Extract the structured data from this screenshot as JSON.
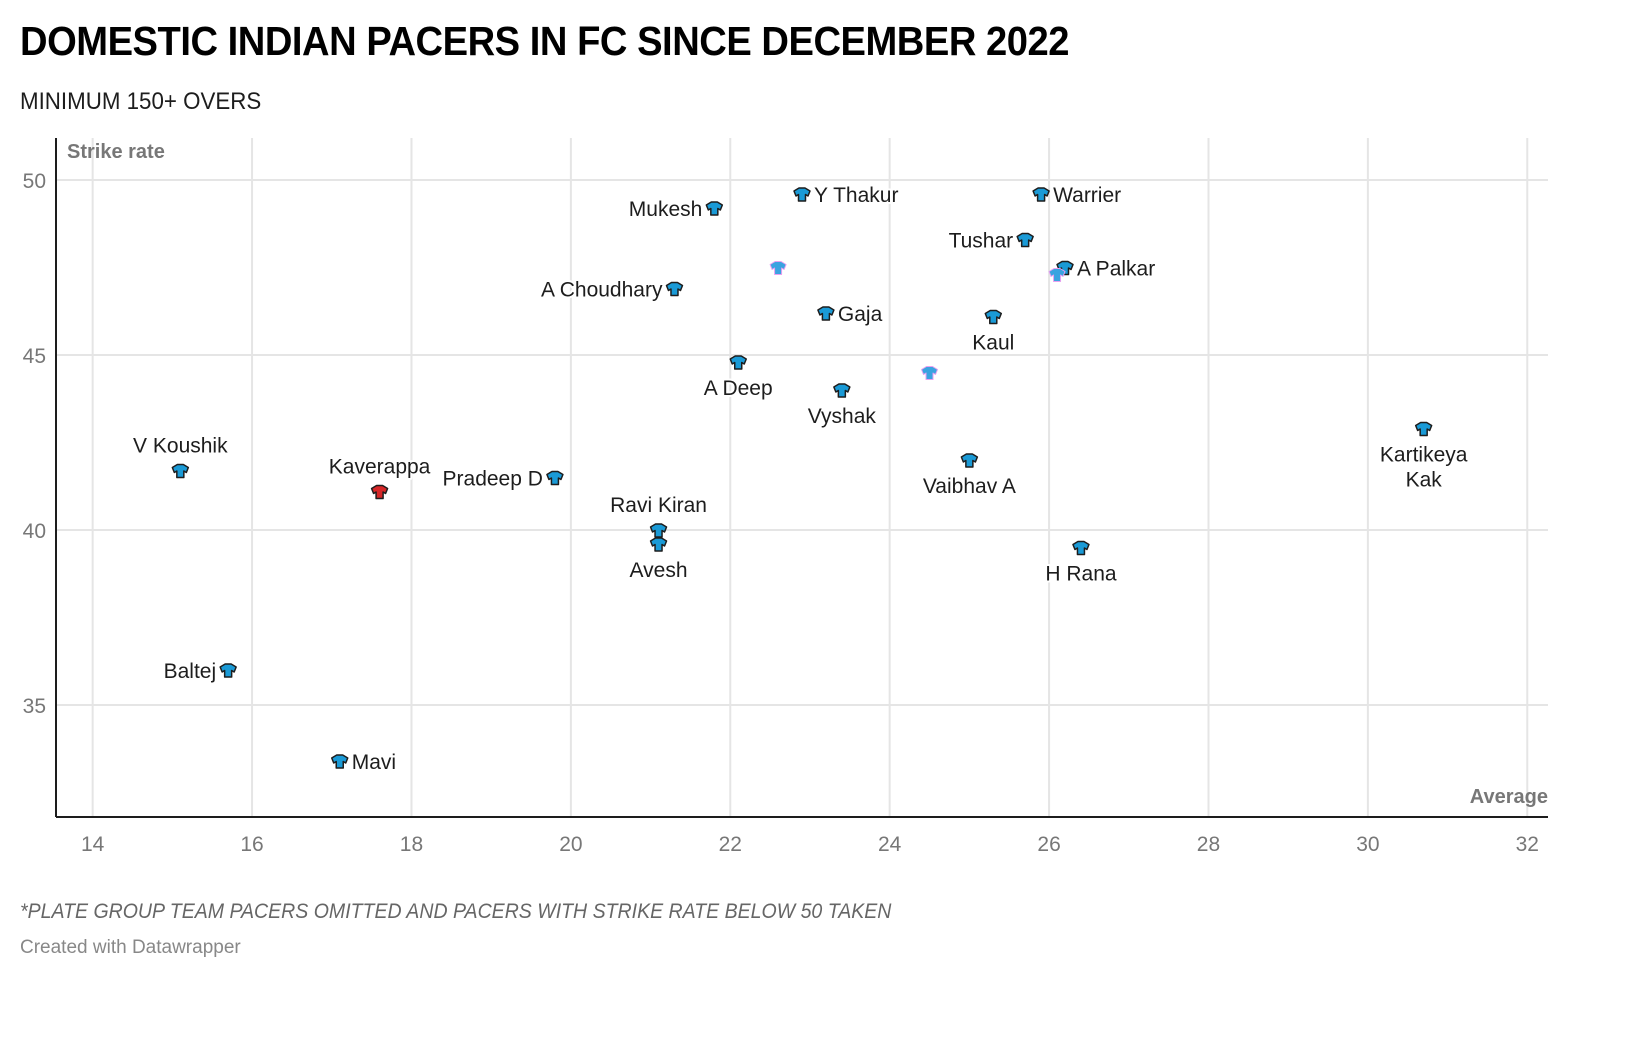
{
  "header": {
    "title": "DOMESTIC INDIAN PACERS IN FC SINCE DECEMBER 2022",
    "subtitle": "MINIMUM 150+ OVERS"
  },
  "footer": {
    "notes": "*PLATE GROUP TEAM PACERS OMITTED AND PACERS WITH STRIKE RATE BELOW 50 TAKEN",
    "byline": "Created with Datawrapper"
  },
  "colors": {
    "marker_default": "#1a9ad6",
    "marker_highlight": "#d62728",
    "marker_unlabeled": "#3aa3e0",
    "marker_outline": "#1d1d1d",
    "grid": "#e5e5e5",
    "axis": "#1d1d1d"
  },
  "chart_data": {
    "type": "scatter",
    "title": "DOMESTIC INDIAN PACERS IN FC SINCE DECEMBER 2022",
    "subtitle": "MINIMUM 150+ OVERS",
    "xlabel": "Average",
    "ylabel": "Strike rate",
    "xlim": [
      13.54,
      32.26
    ],
    "ylim": [
      31.8,
      51.2
    ],
    "xticks": [
      14,
      16,
      18,
      20,
      22,
      24,
      26,
      28,
      30,
      32
    ],
    "yticks": [
      35,
      40,
      45,
      50
    ],
    "grid": true,
    "marker": "t-shirt-icon",
    "points": [
      {
        "label": "Mukesh",
        "x": 21.8,
        "y": 49.2,
        "label_pos": "left",
        "color": "default"
      },
      {
        "label": "Y Thakur",
        "x": 22.9,
        "y": 49.6,
        "label_pos": "right",
        "color": "default"
      },
      {
        "label": "Warrier",
        "x": 25.9,
        "y": 49.6,
        "label_pos": "right",
        "color": "default"
      },
      {
        "label": "Tushar",
        "x": 25.7,
        "y": 48.3,
        "label_pos": "left",
        "color": "default"
      },
      {
        "label": "A Palkar",
        "x": 26.2,
        "y": 47.5,
        "label_pos": "right",
        "color": "default"
      },
      {
        "label": "",
        "x": 22.6,
        "y": 47.5,
        "label_pos": "none",
        "color": "unlabeled"
      },
      {
        "label": "",
        "x": 26.1,
        "y": 47.3,
        "label_pos": "none",
        "color": "unlabeled"
      },
      {
        "label": "A Choudhary",
        "x": 21.3,
        "y": 46.9,
        "label_pos": "left",
        "color": "default"
      },
      {
        "label": "Gaja",
        "x": 23.2,
        "y": 46.2,
        "label_pos": "right",
        "color": "default"
      },
      {
        "label": "Kaul",
        "x": 25.3,
        "y": 46.1,
        "label_pos": "below",
        "color": "default"
      },
      {
        "label": "A Deep",
        "x": 22.1,
        "y": 44.8,
        "label_pos": "below",
        "color": "default"
      },
      {
        "label": "",
        "x": 24.5,
        "y": 44.5,
        "label_pos": "none",
        "color": "unlabeled"
      },
      {
        "label": "Vyshak",
        "x": 23.4,
        "y": 44.0,
        "label_pos": "below",
        "color": "default"
      },
      {
        "label": "Kartikeya Kak",
        "x": 30.7,
        "y": 42.9,
        "label_pos": "below2",
        "color": "default"
      },
      {
        "label": "Vaibhav A",
        "x": 25.0,
        "y": 42.0,
        "label_pos": "below",
        "color": "default"
      },
      {
        "label": "V Koushik",
        "x": 15.1,
        "y": 41.7,
        "label_pos": "above",
        "color": "default"
      },
      {
        "label": "Pradeep D",
        "x": 19.8,
        "y": 41.5,
        "label_pos": "left",
        "color": "default"
      },
      {
        "label": "Kaverappa",
        "x": 17.6,
        "y": 41.1,
        "label_pos": "above",
        "color": "highlight"
      },
      {
        "label": "Ravi Kiran",
        "x": 21.1,
        "y": 40.0,
        "label_pos": "above",
        "color": "default"
      },
      {
        "label": "Avesh",
        "x": 21.1,
        "y": 39.6,
        "label_pos": "below",
        "color": "default"
      },
      {
        "label": "H Rana",
        "x": 26.4,
        "y": 39.5,
        "label_pos": "below",
        "color": "default"
      },
      {
        "label": "Baltej",
        "x": 15.7,
        "y": 36.0,
        "label_pos": "left",
        "color": "default"
      },
      {
        "label": "Mavi",
        "x": 17.1,
        "y": 33.4,
        "label_pos": "right",
        "color": "default"
      }
    ]
  }
}
